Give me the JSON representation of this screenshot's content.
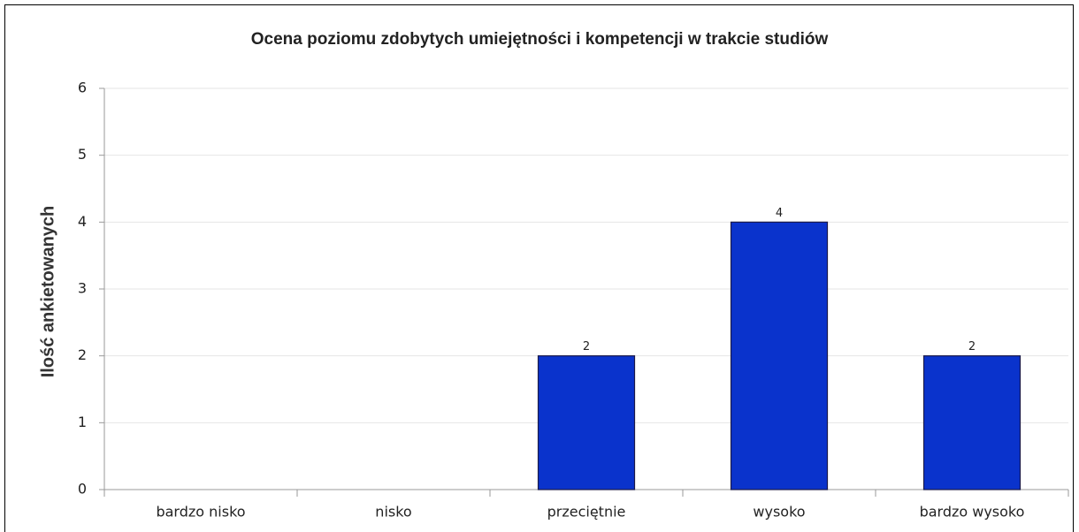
{
  "chart_data": {
    "type": "bar",
    "title": "Ocena poziomu zdobytych umiejętności i kompetencji w trakcie studiów",
    "y_label": "Ilość ankietowanych",
    "categories": [
      "bardzo nisko",
      "nisko",
      "przeciętnie",
      "wysoko",
      "bardzo wysoko"
    ],
    "values": [
      0,
      0,
      2,
      4,
      2
    ],
    "color": "#0a33cc",
    "ylim": [
      0,
      6
    ],
    "yticks": [
      0,
      1,
      2,
      3,
      4,
      5,
      6
    ],
    "grid": true,
    "data_labels": true
  }
}
